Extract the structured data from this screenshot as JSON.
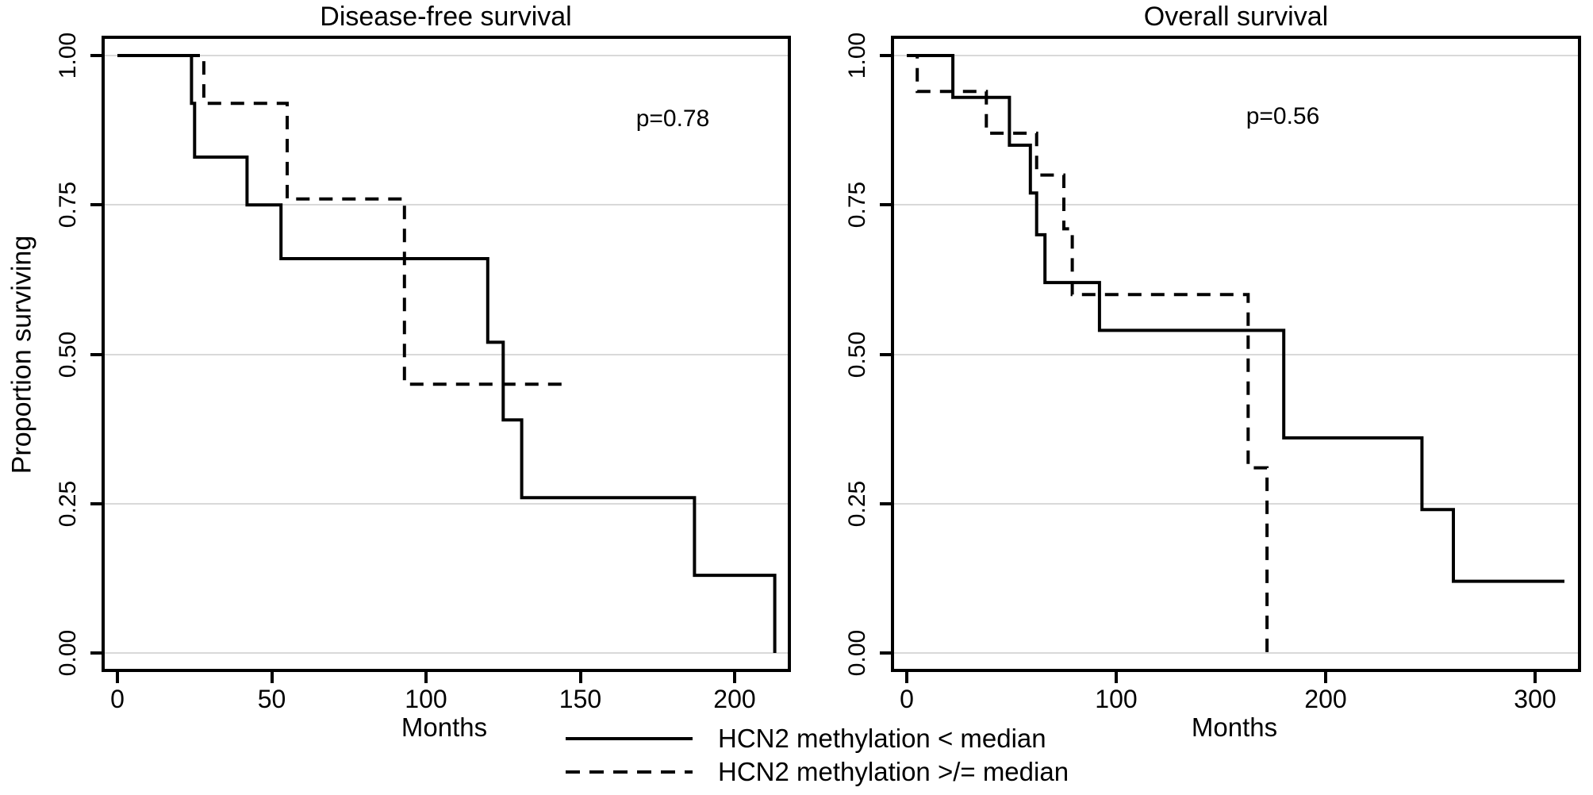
{
  "figure_type": "kaplan-meier-survival-figure",
  "legend": {
    "solid_label": "HCN2 methylation < median",
    "dashed_label": "HCN2 methylation >/= median"
  },
  "colors": {
    "curve": "#000000",
    "gridline": "#d9d9d9",
    "background": "#ffffff",
    "text": "#000000"
  },
  "chart_data": [
    {
      "type": "line",
      "subtype": "kaplan-meier-step",
      "title": "Disease-free survival",
      "p_value": "p=0.78",
      "xlabel": "Months",
      "ylabel": "Proportion surviving",
      "xlim": [
        0,
        218
      ],
      "ylim": [
        0,
        1.0
      ],
      "xticks": [
        0,
        50,
        100,
        150,
        200
      ],
      "ytick_labels": [
        "0.00",
        "0.25",
        "0.50",
        "0.75",
        "1.00"
      ],
      "grid": "horizontal",
      "legend_position": "below-figure",
      "series": [
        {
          "name": "HCN2 methylation < median",
          "style": "solid",
          "points": [
            [
              0,
              1.0
            ],
            [
              24,
              1.0
            ],
            [
              24,
              0.92
            ],
            [
              25,
              0.92
            ],
            [
              25,
              0.83
            ],
            [
              42,
              0.83
            ],
            [
              42,
              0.75
            ],
            [
              53,
              0.75
            ],
            [
              53,
              0.66
            ],
            [
              120,
              0.66
            ],
            [
              120,
              0.52
            ],
            [
              125,
              0.52
            ],
            [
              125,
              0.39
            ],
            [
              131,
              0.39
            ],
            [
              131,
              0.26
            ],
            [
              187,
              0.26
            ],
            [
              187,
              0.13
            ],
            [
              213,
              0.13
            ],
            [
              213,
              0.0
            ]
          ]
        },
        {
          "name": "HCN2 methylation >/= median",
          "style": "dashed",
          "points": [
            [
              0,
              1.0
            ],
            [
              28,
              1.0
            ],
            [
              28,
              0.92
            ],
            [
              55,
              0.92
            ],
            [
              55,
              0.76
            ],
            [
              93,
              0.76
            ],
            [
              93,
              0.45
            ],
            [
              144,
              0.45
            ]
          ]
        }
      ]
    },
    {
      "type": "line",
      "subtype": "kaplan-meier-step",
      "title": "Overall survival",
      "p_value": "p=0.56",
      "xlabel": "Months",
      "ylabel": "",
      "xlim": [
        0,
        322
      ],
      "ylim": [
        0,
        1.0
      ],
      "xticks": [
        0,
        100,
        200,
        300
      ],
      "ytick_labels": [
        "0.00",
        "0.25",
        "0.50",
        "0.75",
        "1.00"
      ],
      "grid": "horizontal",
      "legend_position": "below-figure",
      "series": [
        {
          "name": "HCN2 methylation < median",
          "style": "solid",
          "points": [
            [
              0,
              1.0
            ],
            [
              22,
              1.0
            ],
            [
              22,
              0.93
            ],
            [
              49,
              0.93
            ],
            [
              49,
              0.85
            ],
            [
              59,
              0.85
            ],
            [
              59,
              0.77
            ],
            [
              62,
              0.77
            ],
            [
              62,
              0.7
            ],
            [
              66,
              0.7
            ],
            [
              66,
              0.62
            ],
            [
              92,
              0.62
            ],
            [
              92,
              0.54
            ],
            [
              180,
              0.54
            ],
            [
              180,
              0.36
            ],
            [
              246,
              0.36
            ],
            [
              246,
              0.24
            ],
            [
              261,
              0.24
            ],
            [
              261,
              0.12
            ],
            [
              314,
              0.12
            ]
          ]
        },
        {
          "name": "HCN2 methylation >/= median",
          "style": "dashed",
          "points": [
            [
              0,
              1.0
            ],
            [
              5,
              1.0
            ],
            [
              5,
              0.94
            ],
            [
              38,
              0.94
            ],
            [
              38,
              0.87
            ],
            [
              62,
              0.87
            ],
            [
              62,
              0.8
            ],
            [
              75,
              0.8
            ],
            [
              75,
              0.71
            ],
            [
              79,
              0.71
            ],
            [
              79,
              0.6
            ],
            [
              163,
              0.6
            ],
            [
              163,
              0.31
            ],
            [
              172,
              0.31
            ],
            [
              172,
              0.0
            ],
            [
              174,
              0.0
            ]
          ]
        }
      ]
    }
  ]
}
